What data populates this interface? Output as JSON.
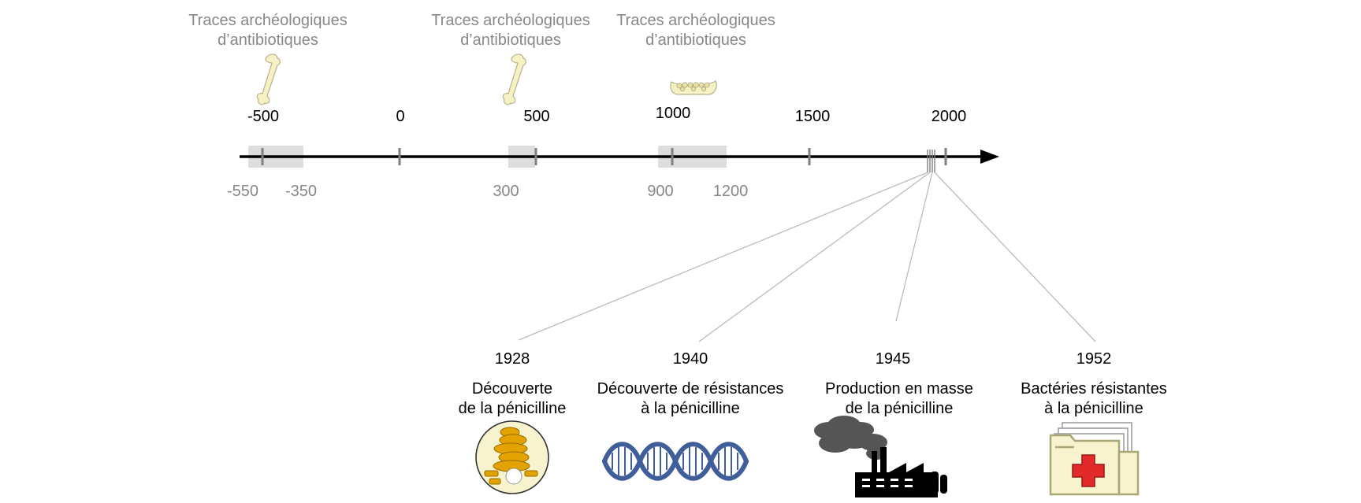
{
  "traces": [
    {
      "line1": "Traces archéologiques",
      "line2": "d’antibiotiques",
      "icon": "bone-icon"
    },
    {
      "line1": "Traces archéologiques",
      "line2": "d’antibiotiques",
      "icon": "bone-icon"
    },
    {
      "line1": "Traces archéologiques",
      "line2": "d’antibiotiques",
      "icon": "jawbone-icon"
    }
  ],
  "axis": {
    "major_ticks": [
      "-500",
      "0",
      "500",
      "1000",
      "1500",
      "2000"
    ],
    "minor_labels": [
      "-550",
      "-350",
      "300",
      "900",
      "1200"
    ]
  },
  "events": [
    {
      "year": "1928",
      "line1": "Découverte",
      "line2": "de la pénicilline",
      "icon": "penicillium-petri-dish-icon"
    },
    {
      "year": "1940",
      "line1": "Découverte de résistances",
      "line2": "à la pénicilline",
      "icon": "dna-helix-icon"
    },
    {
      "year": "1945",
      "line1": "Production en masse",
      "line2": "de la pénicilline",
      "icon": "factory-icon"
    },
    {
      "year": "1952",
      "line1": "Bactéries résistantes",
      "line2": "à la pénicilline",
      "icon": "medical-folder-icon"
    }
  ],
  "colors": {
    "axis": "#000000",
    "tick": "#7f7f7f",
    "range_band": "#dddddd",
    "connector": "#bbbbbb",
    "bone": "#f6f1c4",
    "mold": "#e2a200",
    "dna": "#3f5e9a",
    "factory": "#000000",
    "smoke": "#555555",
    "folder": "#f7f3cf",
    "cross": "#e32a2a"
  }
}
